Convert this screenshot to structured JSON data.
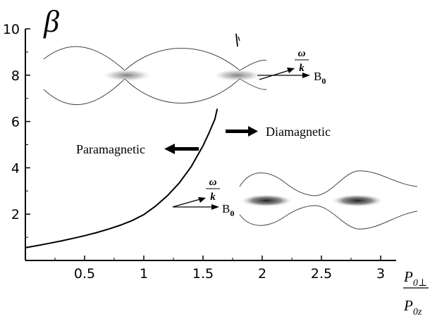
{
  "chart_data": {
    "type": "line",
    "ylabel": "β",
    "xlabel": {
      "numerator": "P",
      "numerator_sub": "0⊥",
      "denominator": "P",
      "denominator_sub": "0z"
    },
    "xlim": [
      0,
      3.1
    ],
    "ylim": [
      0,
      10
    ],
    "x_ticks": [
      0.5,
      1,
      1.5,
      2,
      2.5,
      3
    ],
    "x_tick_labels": [
      "0.5",
      "1",
      "1.5",
      "2",
      "2.5",
      "3"
    ],
    "y_ticks": [
      2,
      4,
      6,
      8,
      10
    ],
    "y_tick_labels": [
      "2",
      "4",
      "6",
      "8",
      "10"
    ],
    "grid": false,
    "series": [
      {
        "x": [
          0.0,
          0.1,
          0.2,
          0.3,
          0.4,
          0.5,
          0.6,
          0.7,
          0.8,
          0.9,
          1.0,
          1.1,
          1.2,
          1.3,
          1.4,
          1.5,
          1.55,
          1.6,
          1.62
        ],
        "y": [
          0.55,
          0.64,
          0.74,
          0.84,
          0.95,
          1.07,
          1.2,
          1.35,
          1.52,
          1.72,
          1.98,
          2.35,
          2.8,
          3.35,
          4.05,
          4.95,
          5.5,
          6.1,
          6.55
        ]
      }
    ],
    "annotations": {
      "diamagnetic": "Diamagnetic",
      "paramagnetic": "Paramagnetic",
      "wave_omega": "ω",
      "wave_k": "k",
      "field": "B",
      "field_sub": "0"
    }
  }
}
